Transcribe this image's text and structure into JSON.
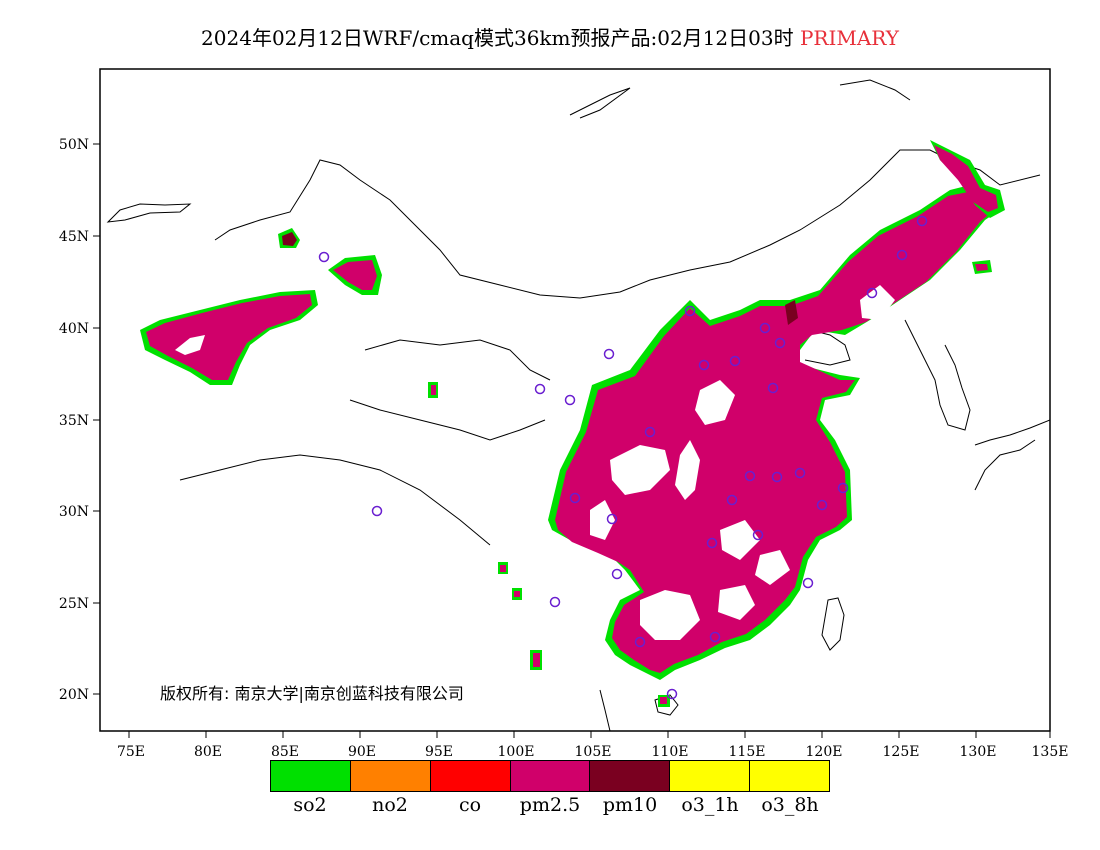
{
  "title": {
    "main": "2024年02月12日WRF/cmaq模式36km预报产品:02月12日03时",
    "tag": "PRIMARY",
    "tag_color": "#e8303a"
  },
  "copyright": "版权所有: 南京大学|南京创蓝科技有限公司",
  "axes": {
    "lon_ticks": [
      "75E",
      "80E",
      "85E",
      "90E",
      "95E",
      "100E",
      "105E",
      "110E",
      "115E",
      "120E",
      "125E",
      "130E",
      "135E"
    ],
    "lat_ticks": [
      "50N",
      "45N",
      "40N",
      "35N",
      "30N",
      "25N",
      "20N"
    ]
  },
  "legend": [
    {
      "label": "so2",
      "color": "#00e000"
    },
    {
      "label": "no2",
      "color": "#ff8000"
    },
    {
      "label": "co",
      "color": "#ff0000"
    },
    {
      "label": "pm2.5",
      "color": "#d0006a"
    },
    {
      "label": "pm10",
      "color": "#7a0020"
    },
    {
      "label": "o3_1h",
      "color": "#ffff00"
    },
    {
      "label": "o3_8h",
      "color": "#ffff00"
    }
  ]
}
